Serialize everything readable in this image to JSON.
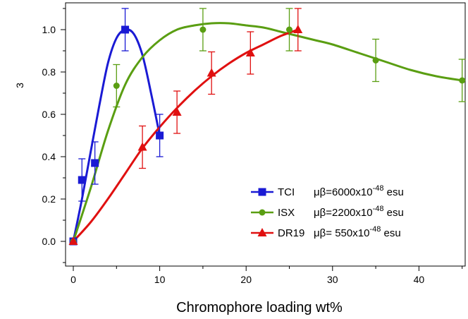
{
  "chart_data": {
    "type": "scatter",
    "xlabel": "Chromophore loading wt%",
    "ylabel": "3",
    "xlim": [
      -1.5,
      46
    ],
    "ylim": [
      -0.13,
      1.13
    ],
    "x_ticks": [
      0,
      10,
      20,
      30,
      40
    ],
    "y_ticks": [
      0.0,
      0.2,
      0.4,
      0.6,
      0.8,
      1.0
    ],
    "x_tick_labels": [
      "0",
      "10",
      "20",
      "30",
      "40"
    ],
    "y_tick_labels": [
      "0.0",
      "0.2",
      "0.4",
      "0.6",
      "0.8",
      "1.0"
    ],
    "grid": false,
    "legend_position": "bottom-right",
    "series": [
      {
        "name": "TCI",
        "legend_formula": "μβ=6000x10",
        "legend_exponent": "-48",
        "legend_unit": "esu",
        "marker": "square",
        "color": "#1a1ad4",
        "x": [
          0,
          1,
          2.5,
          6,
          10
        ],
        "y": [
          0.0,
          0.29,
          0.37,
          1.0,
          0.5
        ],
        "error": [
          0,
          0.1,
          0.1,
          0.1,
          0.1
        ],
        "fit_x": [
          0,
          1,
          2,
          3,
          4,
          5,
          6,
          7,
          8,
          9,
          10
        ],
        "fit_y": [
          0.0,
          0.2,
          0.42,
          0.64,
          0.84,
          0.96,
          1.0,
          0.98,
          0.88,
          0.7,
          0.5
        ]
      },
      {
        "name": "ISX",
        "legend_formula": "μβ=2200x10",
        "legend_exponent": "-48",
        "legend_unit": "esu",
        "marker": "circle",
        "color": "#5a9e12",
        "x": [
          0,
          5,
          15,
          25,
          35,
          45
        ],
        "y": [
          0.0,
          0.735,
          1.0,
          1.0,
          0.855,
          0.76
        ],
        "error": [
          0,
          0.1,
          0.1,
          0.1,
          0.1,
          0.1
        ],
        "fit_x": [
          0,
          2,
          4,
          6,
          8,
          10,
          12,
          14,
          16,
          18,
          20,
          22,
          24,
          26,
          28,
          30,
          33,
          36,
          39,
          42,
          45
        ],
        "fit_y": [
          0.0,
          0.25,
          0.52,
          0.74,
          0.87,
          0.95,
          1.0,
          1.02,
          1.03,
          1.03,
          1.02,
          1.01,
          0.99,
          0.97,
          0.95,
          0.93,
          0.89,
          0.85,
          0.81,
          0.78,
          0.76
        ]
      },
      {
        "name": "DR19",
        "legend_formula": "μβ=   550x10",
        "legend_exponent": "-48",
        "legend_unit": "esu",
        "marker": "triangle",
        "color": "#e01010",
        "x": [
          0,
          8,
          12,
          16,
          20.5,
          26
        ],
        "y": [
          0.0,
          0.445,
          0.61,
          0.795,
          0.89,
          1.0
        ],
        "error": [
          0,
          0.1,
          0.1,
          0.1,
          0.1,
          0.1
        ],
        "fit_x": [
          0,
          2,
          4,
          6,
          8,
          10,
          12,
          14,
          16,
          18,
          20,
          22,
          24,
          26
        ],
        "fit_y": [
          0.0,
          0.09,
          0.2,
          0.32,
          0.44,
          0.54,
          0.63,
          0.71,
          0.78,
          0.84,
          0.89,
          0.93,
          0.97,
          1.0
        ]
      }
    ]
  }
}
